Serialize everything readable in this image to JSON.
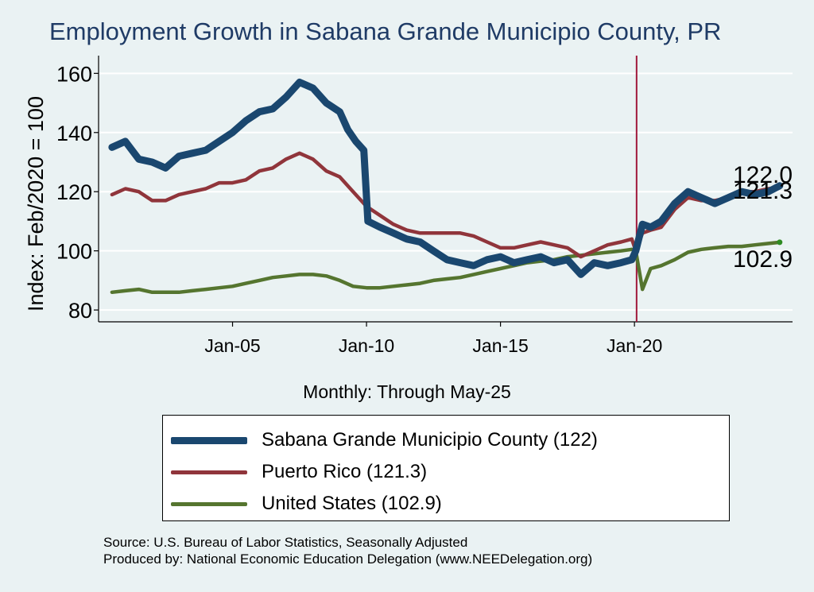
{
  "title": "Employment Growth in Sabana Grande Municipio  County, PR",
  "chart_data": {
    "type": "line",
    "ylabel": "Index: Feb/2020 = 100",
    "xlabel": "Monthly: Through May-25",
    "ylim": [
      76,
      166
    ],
    "xlim": [
      2000.0,
      2025.9
    ],
    "yticks": [
      80,
      100,
      120,
      140,
      160
    ],
    "xticks": [
      {
        "label": "Jan-05",
        "value": 2005.0
      },
      {
        "label": "Jan-10",
        "value": 2010.0
      },
      {
        "label": "Jan-15",
        "value": 2015.0
      },
      {
        "label": "Jan-20",
        "value": 2020.0
      }
    ],
    "reference_line": {
      "x": 2020.08,
      "color": "#a0173a"
    },
    "grid": true,
    "series": [
      {
        "name": "Sabana Grande Municipio  County (122)",
        "color": "#1a476f",
        "points": [
          [
            2000.5,
            135
          ],
          [
            2001.0,
            137
          ],
          [
            2001.5,
            131
          ],
          [
            2002.0,
            130
          ],
          [
            2002.5,
            128
          ],
          [
            2003.0,
            132
          ],
          [
            2003.5,
            133
          ],
          [
            2004.0,
            134
          ],
          [
            2004.5,
            137
          ],
          [
            2005.0,
            140
          ],
          [
            2005.5,
            144
          ],
          [
            2006.0,
            147
          ],
          [
            2006.5,
            148
          ],
          [
            2007.0,
            152
          ],
          [
            2007.5,
            157
          ],
          [
            2008.0,
            155
          ],
          [
            2008.5,
            150
          ],
          [
            2009.0,
            147
          ],
          [
            2009.3,
            141
          ],
          [
            2009.6,
            137
          ],
          [
            2009.9,
            134
          ],
          [
            2010.05,
            110
          ],
          [
            2010.5,
            108
          ],
          [
            2011.0,
            106
          ],
          [
            2011.5,
            104
          ],
          [
            2012.0,
            103
          ],
          [
            2012.5,
            100
          ],
          [
            2013.0,
            97
          ],
          [
            2013.5,
            96
          ],
          [
            2014.0,
            95
          ],
          [
            2014.5,
            97
          ],
          [
            2015.0,
            98
          ],
          [
            2015.5,
            96
          ],
          [
            2016.0,
            97
          ],
          [
            2016.5,
            98
          ],
          [
            2017.0,
            96
          ],
          [
            2017.5,
            97
          ],
          [
            2018.0,
            92
          ],
          [
            2018.5,
            96
          ],
          [
            2019.0,
            95
          ],
          [
            2019.5,
            96
          ],
          [
            2019.9,
            97
          ],
          [
            2020.05,
            100
          ],
          [
            2020.3,
            109
          ],
          [
            2020.6,
            108
          ],
          [
            2021.0,
            110
          ],
          [
            2021.5,
            116
          ],
          [
            2022.0,
            120
          ],
          [
            2022.5,
            118
          ],
          [
            2023.0,
            116
          ],
          [
            2023.5,
            118
          ],
          [
            2024.0,
            120
          ],
          [
            2024.5,
            119
          ],
          [
            2025.0,
            120
          ],
          [
            2025.42,
            122
          ]
        ],
        "end_label": "122.0"
      },
      {
        "name": "Puerto Rico (121.3)",
        "color": "#90353b",
        "points": [
          [
            2000.5,
            119
          ],
          [
            2001.0,
            121
          ],
          [
            2001.5,
            120
          ],
          [
            2002.0,
            117
          ],
          [
            2002.5,
            117
          ],
          [
            2003.0,
            119
          ],
          [
            2003.5,
            120
          ],
          [
            2004.0,
            121
          ],
          [
            2004.5,
            123
          ],
          [
            2005.0,
            123
          ],
          [
            2005.5,
            124
          ],
          [
            2006.0,
            127
          ],
          [
            2006.5,
            128
          ],
          [
            2007.0,
            131
          ],
          [
            2007.5,
            133
          ],
          [
            2008.0,
            131
          ],
          [
            2008.5,
            127
          ],
          [
            2009.0,
            125
          ],
          [
            2009.5,
            120
          ],
          [
            2010.0,
            115
          ],
          [
            2010.5,
            112
          ],
          [
            2011.0,
            109
          ],
          [
            2011.5,
            107
          ],
          [
            2012.0,
            106
          ],
          [
            2012.5,
            106
          ],
          [
            2013.0,
            106
          ],
          [
            2013.5,
            106
          ],
          [
            2014.0,
            105
          ],
          [
            2014.5,
            103
          ],
          [
            2015.0,
            101
          ],
          [
            2015.5,
            101
          ],
          [
            2016.0,
            102
          ],
          [
            2016.5,
            103
          ],
          [
            2017.0,
            102
          ],
          [
            2017.5,
            101
          ],
          [
            2018.0,
            98
          ],
          [
            2018.5,
            100
          ],
          [
            2019.0,
            102
          ],
          [
            2019.5,
            103
          ],
          [
            2019.9,
            104
          ],
          [
            2020.05,
            100
          ],
          [
            2020.3,
            106
          ],
          [
            2020.6,
            107
          ],
          [
            2021.0,
            108
          ],
          [
            2021.5,
            114
          ],
          [
            2022.0,
            118
          ],
          [
            2022.5,
            117
          ],
          [
            2023.0,
            117
          ],
          [
            2023.5,
            118
          ],
          [
            2024.0,
            120
          ],
          [
            2024.5,
            120
          ],
          [
            2025.0,
            121
          ],
          [
            2025.42,
            121.3
          ]
        ],
        "end_label": "121.3"
      },
      {
        "name": "United States (102.9)",
        "color": "#55752f",
        "points": [
          [
            2000.5,
            86
          ],
          [
            2001.0,
            86.5
          ],
          [
            2001.5,
            87
          ],
          [
            2002.0,
            86
          ],
          [
            2002.5,
            86
          ],
          [
            2003.0,
            86
          ],
          [
            2003.5,
            86.5
          ],
          [
            2004.0,
            87
          ],
          [
            2004.5,
            87.5
          ],
          [
            2005.0,
            88
          ],
          [
            2005.5,
            89
          ],
          [
            2006.0,
            90
          ],
          [
            2006.5,
            91
          ],
          [
            2007.0,
            91.5
          ],
          [
            2007.5,
            92
          ],
          [
            2008.0,
            92
          ],
          [
            2008.5,
            91.5
          ],
          [
            2009.0,
            90
          ],
          [
            2009.5,
            88
          ],
          [
            2010.0,
            87.5
          ],
          [
            2010.5,
            87.5
          ],
          [
            2011.0,
            88
          ],
          [
            2011.5,
            88.5
          ],
          [
            2012.0,
            89
          ],
          [
            2012.5,
            90
          ],
          [
            2013.0,
            90.5
          ],
          [
            2013.5,
            91
          ],
          [
            2014.0,
            92
          ],
          [
            2014.5,
            93
          ],
          [
            2015.0,
            94
          ],
          [
            2015.5,
            95
          ],
          [
            2016.0,
            96
          ],
          [
            2016.5,
            96.5
          ],
          [
            2017.0,
            97
          ],
          [
            2017.5,
            98
          ],
          [
            2018.0,
            98.5
          ],
          [
            2018.5,
            99
          ],
          [
            2019.0,
            99.5
          ],
          [
            2019.5,
            100
          ],
          [
            2019.9,
            100.5
          ],
          [
            2020.05,
            100
          ],
          [
            2020.3,
            87
          ],
          [
            2020.6,
            94
          ],
          [
            2021.0,
            95
          ],
          [
            2021.5,
            97
          ],
          [
            2022.0,
            99.5
          ],
          [
            2022.5,
            100.5
          ],
          [
            2023.0,
            101
          ],
          [
            2023.5,
            101.5
          ],
          [
            2024.0,
            101.5
          ],
          [
            2024.5,
            102
          ],
          [
            2025.0,
            102.5
          ],
          [
            2025.42,
            102.9
          ]
        ],
        "end_label": "102.9"
      }
    ]
  },
  "legend": {
    "items": [
      {
        "label": "Sabana Grande Municipio  County (122)"
      },
      {
        "label": "Puerto Rico (121.3)"
      },
      {
        "label": "United States (102.9)"
      }
    ]
  },
  "source": {
    "line1": "Source: U.S. Bureau of Labor Statistics, Seasonally Adjusted",
    "line2": "Produced by: National Economic Education Delegation (www.NEEDelegation.org)"
  }
}
